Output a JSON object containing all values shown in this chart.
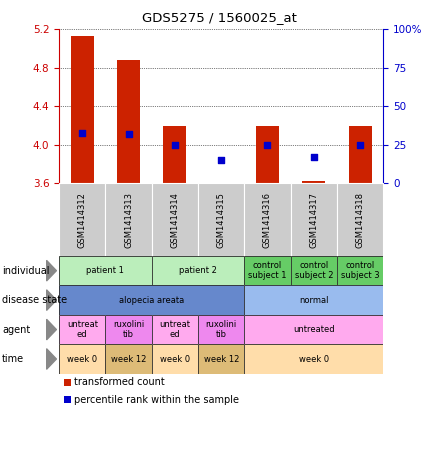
{
  "title": "GDS5275 / 1560025_at",
  "samples": [
    "GSM1414312",
    "GSM1414313",
    "GSM1414314",
    "GSM1414315",
    "GSM1414316",
    "GSM1414317",
    "GSM1414318"
  ],
  "bar_values": [
    5.13,
    4.88,
    4.2,
    3.61,
    4.2,
    3.63,
    4.2
  ],
  "bar_bottom": 3.6,
  "blue_pct": [
    33,
    32,
    25,
    15,
    25,
    17,
    25
  ],
  "ylim_left": [
    3.6,
    5.2
  ],
  "ylim_right": [
    0,
    100
  ],
  "yticks_left": [
    3.6,
    4.0,
    4.4,
    4.8,
    5.2
  ],
  "yticks_right": [
    0,
    25,
    50,
    75,
    100
  ],
  "left_color": "#cc0000",
  "right_color": "#0000cc",
  "bar_color": "#cc2200",
  "blue_marker_color": "#0000cc",
  "rows": [
    {
      "label": "individual",
      "cells": [
        {
          "text": "patient 1",
          "span": 2,
          "color": "#bbeebb"
        },
        {
          "text": "patient 2",
          "span": 2,
          "color": "#bbeebb"
        },
        {
          "text": "control\nsubject 1",
          "span": 1,
          "color": "#66cc66"
        },
        {
          "text": "control\nsubject 2",
          "span": 1,
          "color": "#66cc66"
        },
        {
          "text": "control\nsubject 3",
          "span": 1,
          "color": "#66cc66"
        }
      ]
    },
    {
      "label": "disease state",
      "cells": [
        {
          "text": "alopecia areata",
          "span": 4,
          "color": "#6688cc"
        },
        {
          "text": "normal",
          "span": 3,
          "color": "#99bbee"
        }
      ]
    },
    {
      "label": "agent",
      "cells": [
        {
          "text": "untreat\ned",
          "span": 1,
          "color": "#ffaaee"
        },
        {
          "text": "ruxolini\ntib",
          "span": 1,
          "color": "#ee88ee"
        },
        {
          "text": "untreat\ned",
          "span": 1,
          "color": "#ffaaee"
        },
        {
          "text": "ruxolini\ntib",
          "span": 1,
          "color": "#ee88ee"
        },
        {
          "text": "untreated",
          "span": 3,
          "color": "#ffaaee"
        }
      ]
    },
    {
      "label": "time",
      "cells": [
        {
          "text": "week 0",
          "span": 1,
          "color": "#ffddaa"
        },
        {
          "text": "week 12",
          "span": 1,
          "color": "#ddbb77"
        },
        {
          "text": "week 0",
          "span": 1,
          "color": "#ffddaa"
        },
        {
          "text": "week 12",
          "span": 1,
          "color": "#ddbb77"
        },
        {
          "text": "week 0",
          "span": 3,
          "color": "#ffddaa"
        }
      ]
    }
  ],
  "legend_items": [
    {
      "color": "#cc2200",
      "label": "transformed count"
    },
    {
      "color": "#0000cc",
      "label": "percentile rank within the sample"
    }
  ]
}
